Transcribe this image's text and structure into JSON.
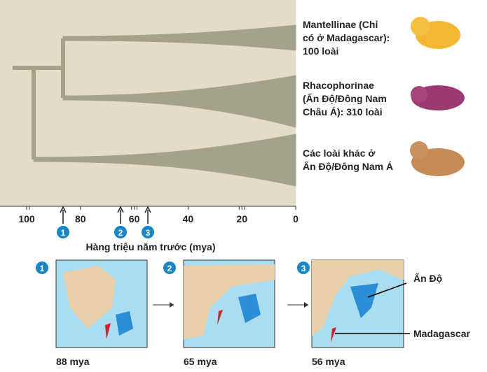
{
  "tree": {
    "clades": [
      {
        "lines": [
          "Mantellinae (Chỉ",
          "có ở Madagascar):",
          "100 loài"
        ]
      },
      {
        "lines": [
          "Rhacophorinae",
          "(Ấn Độ/Đông Nam",
          "Châu Á): 310 loài"
        ]
      },
      {
        "lines": [
          "Các loài khác ở",
          "Ấn Độ/Đông Nam Á"
        ]
      }
    ],
    "axis": {
      "ticks": [
        100,
        80,
        60,
        40,
        20,
        0
      ],
      "label": "Hàng triệu năm trước (mya)"
    },
    "markers": [
      "1",
      "2",
      "3"
    ]
  },
  "maps": [
    {
      "number": "1",
      "caption": "88 mya"
    },
    {
      "number": "2",
      "caption": "65 mya"
    },
    {
      "number": "3",
      "caption": "56 mya"
    }
  ],
  "map_labels": {
    "india": "Ấn Độ",
    "madagascar": "Madagascar"
  }
}
